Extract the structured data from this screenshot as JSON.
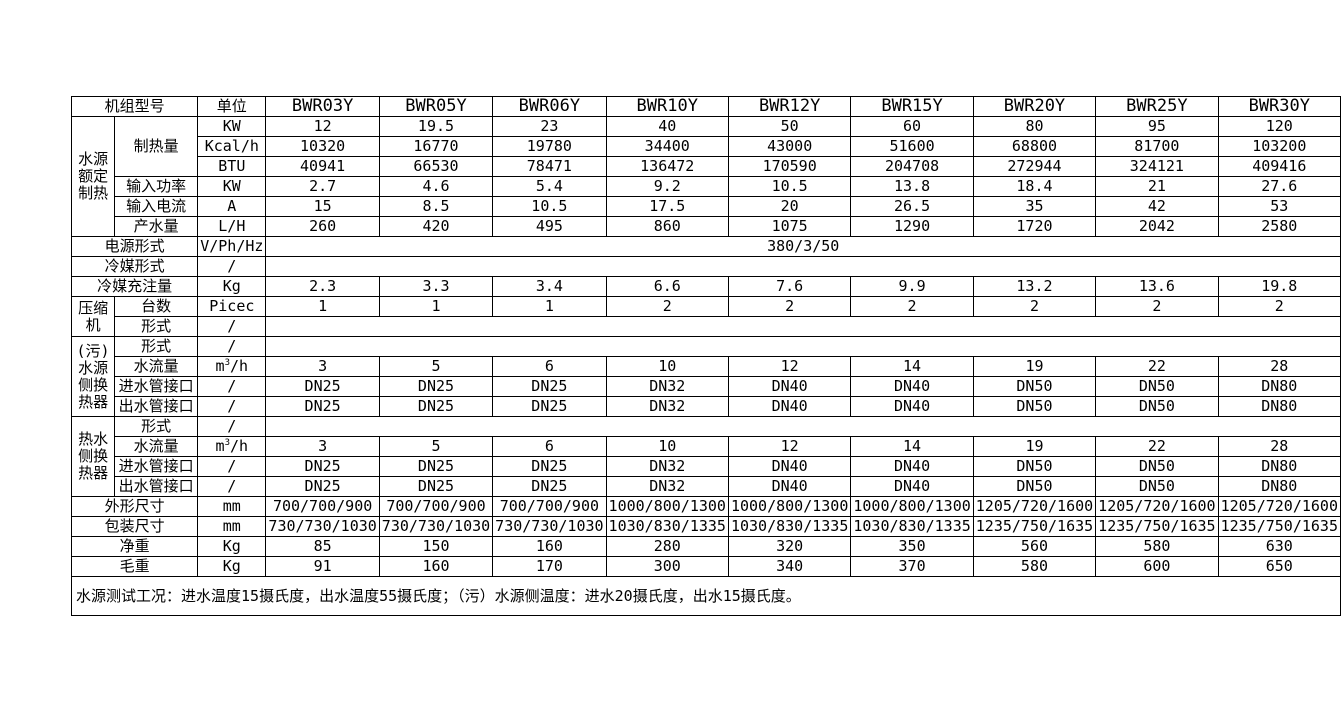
{
  "page": {
    "background_color": "#ffffff",
    "border_color": "#000000",
    "text_color": "#000000"
  },
  "grid": {
    "rows": [
      {
        "cells": [
          {
            "t": "机组型号",
            "cs": 2,
            "cls": "hdr lbl",
            "n": "model-header-label"
          },
          {
            "t": "单位",
            "cls": "hdr lbl",
            "n": "unit-header-label"
          },
          {
            "t": "BWR03Y",
            "cls": "hdr",
            "n": "column-header-model"
          },
          {
            "t": "BWR05Y",
            "cls": "hdr",
            "n": "column-header-model"
          },
          {
            "t": "BWR06Y",
            "cls": "hdr",
            "n": "column-header-model"
          },
          {
            "t": "BWR10Y",
            "cls": "hdr",
            "n": "column-header-model"
          },
          {
            "t": "BWR12Y",
            "cls": "hdr",
            "n": "column-header-model"
          },
          {
            "t": "BWR15Y",
            "cls": "hdr",
            "n": "column-header-model"
          },
          {
            "t": "BWR20Y",
            "cls": "hdr",
            "n": "column-header-model"
          },
          {
            "t": "BWR25Y",
            "cls": "hdr",
            "n": "column-header-model"
          },
          {
            "t": "BWR30Y",
            "cls": "hdr",
            "n": "column-header-model"
          }
        ]
      },
      {
        "cells": [
          {
            "t": "水源额定\n制热",
            "rs": 6,
            "cls": "grp",
            "n": "row-group-label"
          },
          {
            "t": "制热量",
            "rs": 3,
            "cls": "lbl",
            "n": "row-label"
          },
          {
            "t": "KW",
            "n": "unit-cell"
          },
          "12",
          "19.5",
          "23",
          "40",
          "50",
          "60",
          "80",
          "95",
          "120"
        ]
      },
      {
        "cells": [
          {
            "t": "Kcal/h",
            "n": "unit-cell"
          },
          "10320",
          "16770",
          "19780",
          "34400",
          "43000",
          "51600",
          "68800",
          "81700",
          "103200"
        ]
      },
      {
        "cells": [
          {
            "t": "BTU",
            "n": "unit-cell"
          },
          "40941",
          "66530",
          "78471",
          "136472",
          "170590",
          "204708",
          "272944",
          "324121",
          "409416"
        ]
      },
      {
        "cells": [
          {
            "t": "输入功率",
            "cls": "lbl",
            "n": "row-label"
          },
          {
            "t": "KW",
            "n": "unit-cell"
          },
          "2.7",
          "4.6",
          "5.4",
          "9.2",
          "10.5",
          "13.8",
          "18.4",
          "21",
          "27.6"
        ]
      },
      {
        "cells": [
          {
            "t": "输入电流",
            "cls": "lbl",
            "n": "row-label"
          },
          {
            "t": "A",
            "n": "unit-cell"
          },
          "15",
          "8.5",
          "10.5",
          "17.5",
          "20",
          "26.5",
          "35",
          "42",
          "53"
        ]
      },
      {
        "cells": [
          {
            "t": "产水量",
            "cls": "lbl",
            "n": "row-label"
          },
          {
            "t": "L/H",
            "n": "unit-cell"
          },
          "260",
          "420",
          "495",
          "860",
          "1075",
          "1290",
          "1720",
          "2042",
          "2580"
        ]
      },
      {
        "cells": [
          {
            "t": "电源形式",
            "cs": 2,
            "cls": "lbl",
            "n": "row-label"
          },
          {
            "t": "V/Ph/Hz",
            "n": "unit-cell"
          },
          {
            "t": "380/3/50",
            "cs": 9,
            "n": "merged-value-cell"
          }
        ]
      },
      {
        "cells": [
          {
            "t": "冷媒形式",
            "cs": 2,
            "cls": "lbl",
            "n": "row-label"
          },
          {
            "t": "/",
            "n": "unit-cell"
          },
          {
            "t": "",
            "cs": 9,
            "n": "merged-value-cell"
          }
        ]
      },
      {
        "cells": [
          {
            "t": "冷媒充注量",
            "cs": 2,
            "cls": "lbl",
            "n": "row-label"
          },
          {
            "t": "Kg",
            "n": "unit-cell"
          },
          "2.3",
          "3.3",
          "3.4",
          "6.6",
          "7.6",
          "9.9",
          "13.2",
          "13.6",
          "19.8"
        ]
      },
      {
        "cells": [
          {
            "t": "压缩机",
            "rs": 2,
            "cls": "grp",
            "n": "row-group-label"
          },
          {
            "t": "台数",
            "cls": "lbl",
            "n": "row-label"
          },
          {
            "t": "Picec",
            "n": "unit-cell"
          },
          "1",
          "1",
          "1",
          "2",
          "2",
          "2",
          "2",
          "2",
          "2"
        ]
      },
      {
        "cells": [
          {
            "t": "形式",
            "cls": "lbl",
            "n": "row-label"
          },
          {
            "t": "/",
            "n": "unit-cell"
          },
          {
            "t": "",
            "cs": 9,
            "n": "merged-value-cell"
          }
        ]
      },
      {
        "cells": [
          {
            "t": "(污)水源\n侧换热器",
            "rs": 4,
            "cls": "grp",
            "n": "row-group-label"
          },
          {
            "t": "形式",
            "cls": "lbl",
            "n": "row-label"
          },
          {
            "t": "/",
            "n": "unit-cell"
          },
          {
            "t": "",
            "cs": 9,
            "n": "merged-value-cell"
          }
        ]
      },
      {
        "cells": [
          {
            "t": "水流量",
            "cls": "lbl",
            "n": "row-label"
          },
          {
            "parts": [
              {
                "t": "m"
              },
              {
                "t": "3",
                "sup": true
              },
              {
                "t": "/h"
              }
            ],
            "n": "unit-cell"
          },
          "3",
          "5",
          "6",
          "10",
          "12",
          "14",
          "19",
          "22",
          "28"
        ]
      },
      {
        "cells": [
          {
            "t": "进水管接口",
            "cls": "lbl",
            "n": "row-label"
          },
          {
            "t": "/",
            "n": "unit-cell"
          },
          "DN25",
          "DN25",
          "DN25",
          "DN32",
          "DN40",
          "DN40",
          "DN50",
          "DN50",
          "DN80"
        ]
      },
      {
        "cells": [
          {
            "t": "出水管接口",
            "cls": "lbl",
            "n": "row-label"
          },
          {
            "t": "/",
            "n": "unit-cell"
          },
          "DN25",
          "DN25",
          "DN25",
          "DN32",
          "DN40",
          "DN40",
          "DN50",
          "DN50",
          "DN80"
        ]
      },
      {
        "cells": [
          {
            "t": "热水侧换\n热器",
            "rs": 4,
            "cls": "grp",
            "n": "row-group-label"
          },
          {
            "t": "形式",
            "cls": "lbl",
            "n": "row-label"
          },
          {
            "t": "/",
            "n": "unit-cell"
          },
          {
            "t": "",
            "cs": 9,
            "n": "merged-value-cell"
          }
        ]
      },
      {
        "cells": [
          {
            "t": "水流量",
            "cls": "lbl",
            "n": "row-label"
          },
          {
            "parts": [
              {
                "t": "m"
              },
              {
                "t": "3",
                "sup": true
              },
              {
                "t": "/h"
              }
            ],
            "n": "unit-cell"
          },
          "3",
          "5",
          "6",
          "10",
          "12",
          "14",
          "19",
          "22",
          "28"
        ]
      },
      {
        "cells": [
          {
            "t": "进水管接口",
            "cls": "lbl",
            "n": "row-label"
          },
          {
            "t": "/",
            "n": "unit-cell"
          },
          "DN25",
          "DN25",
          "DN25",
          "DN32",
          "DN40",
          "DN40",
          "DN50",
          "DN50",
          "DN80"
        ]
      },
      {
        "cells": [
          {
            "t": "出水管接口",
            "cls": "lbl",
            "n": "row-label"
          },
          {
            "t": "/",
            "n": "unit-cell"
          },
          "DN25",
          "DN25",
          "DN25",
          "DN32",
          "DN40",
          "DN40",
          "DN50",
          "DN50",
          "DN80"
        ]
      },
      {
        "cells": [
          {
            "t": "外形尺寸",
            "cs": 2,
            "cls": "lbl",
            "n": "row-label"
          },
          {
            "t": "mm",
            "n": "unit-cell"
          },
          "700/700/900",
          "700/700/900",
          "700/700/900",
          "1000/800/1300",
          "1000/800/1300",
          "1000/800/1300",
          "1205/720/1600",
          "1205/720/1600",
          "1205/720/1600"
        ]
      },
      {
        "cells": [
          {
            "t": "包装尺寸",
            "cs": 2,
            "cls": "lbl",
            "n": "row-label"
          },
          {
            "t": "mm",
            "n": "unit-cell"
          },
          "730/730/1030",
          "730/730/1030",
          "730/730/1030",
          "1030/830/1335",
          "1030/830/1335",
          "1030/830/1335",
          "1235/750/1635",
          "1235/750/1635",
          "1235/750/1635"
        ]
      },
      {
        "cells": [
          {
            "t": "净重",
            "cs": 2,
            "cls": "lbl",
            "n": "row-label"
          },
          {
            "t": "Kg",
            "n": "unit-cell"
          },
          "85",
          "150",
          "160",
          "280",
          "320",
          "350",
          "560",
          "580",
          "630"
        ]
      },
      {
        "cells": [
          {
            "t": "毛重",
            "cs": 2,
            "cls": "lbl",
            "n": "row-label"
          },
          {
            "t": "Kg",
            "n": "unit-cell"
          },
          "91",
          "160",
          "170",
          "300",
          "340",
          "370",
          "580",
          "600",
          "650"
        ]
      },
      {
        "cells": [
          {
            "t": "水源测试工况：进水温度15摄氏度，出水温度55摄氏度；（污）水源侧温度：进水20摄氏度，出水15摄氏度。",
            "cs": 12,
            "cls": "note",
            "n": "test-conditions-note"
          }
        ]
      }
    ]
  }
}
